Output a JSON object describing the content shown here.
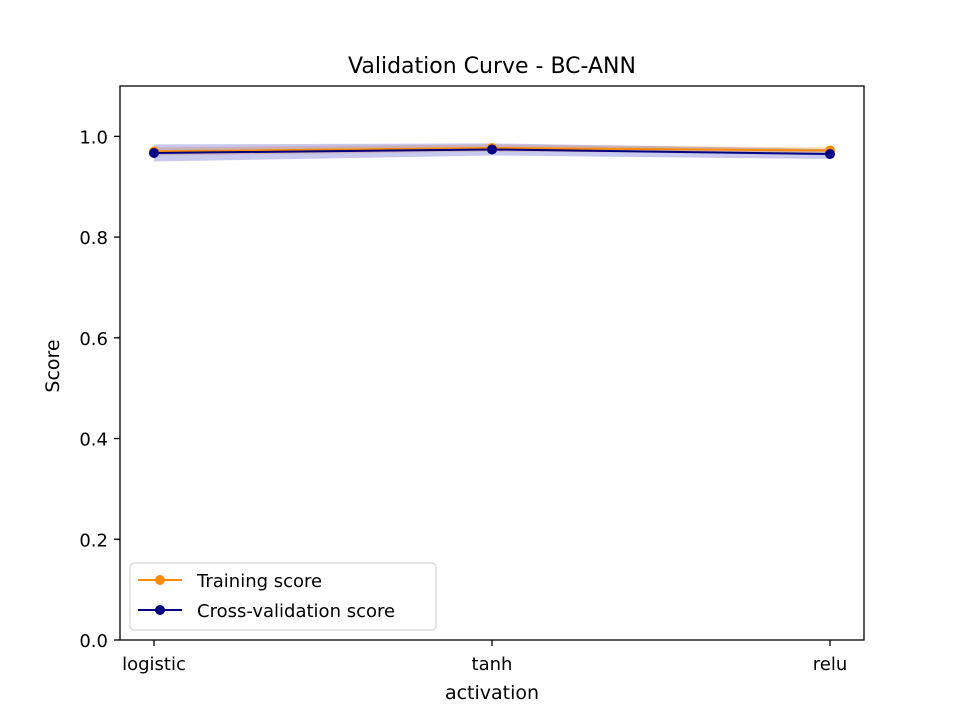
{
  "chart_data": {
    "type": "line",
    "title": "Validation Curve - BC-ANN",
    "xlabel": "activation",
    "ylabel": "Score",
    "categories": [
      "logistic",
      "tanh",
      "relu"
    ],
    "ylim": [
      0.0,
      1.1
    ],
    "yticks": [
      0.0,
      0.2,
      0.4,
      0.6,
      0.8,
      1.0
    ],
    "ytick_labels": [
      "0.0",
      "0.2",
      "0.4",
      "0.6",
      "0.8",
      "1.0"
    ],
    "grid": false,
    "legend_position": "lower-left",
    "series": [
      {
        "name": "Training score",
        "values": [
          0.97,
          0.977,
          0.972
        ],
        "band_lower": [
          0.962,
          0.97,
          0.966
        ],
        "band_upper": [
          0.978,
          0.984,
          0.978
        ],
        "color": "#ff8c00",
        "band_color": "#ff8c00"
      },
      {
        "name": "Cross-validation score",
        "values": [
          0.967,
          0.974,
          0.965
        ],
        "band_lower": [
          0.95,
          0.962,
          0.955
        ],
        "band_upper": [
          0.984,
          0.986,
          0.975
        ],
        "color": "#000080",
        "band_color": "#4b4bcc"
      }
    ]
  }
}
